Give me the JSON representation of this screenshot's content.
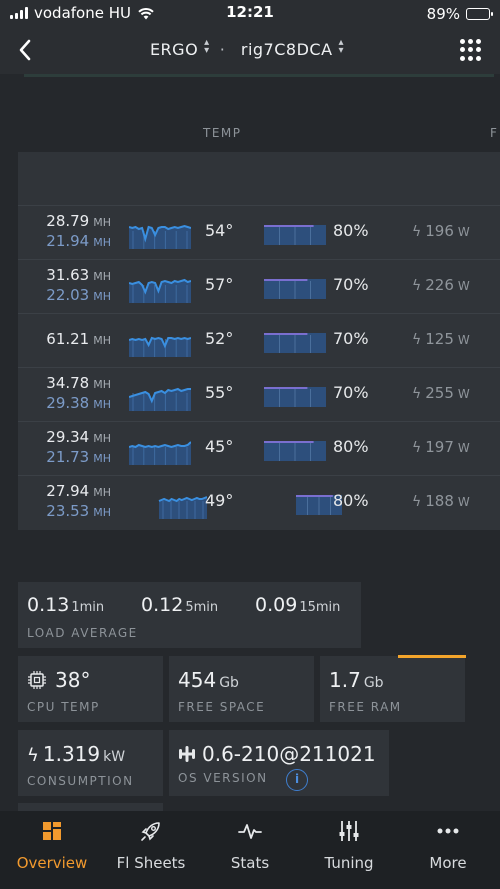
{
  "status_bar": {
    "carrier": "vodafone HU",
    "time": "12:21",
    "battery": "89%",
    "battery_level": 0.89
  },
  "nav": {
    "coin": "ERGO",
    "separator": "·",
    "rig": "rig7C8DCA"
  },
  "columns": {
    "temp": "TEMP",
    "fan_partial": "F"
  },
  "gpus": [
    {
      "hr1": "28.79",
      "hr2": "21.94",
      "temp": "54°",
      "fan": "80%",
      "fan_level": 0.8,
      "power": "196",
      "indent": false
    },
    {
      "hr1": "31.63",
      "hr2": "22.03",
      "temp": "57°",
      "fan": "70%",
      "fan_level": 0.7,
      "power": "226",
      "indent": false
    },
    {
      "hr1": "61.21",
      "hr2": "",
      "temp": "52°",
      "fan": "70%",
      "fan_level": 0.7,
      "power": "125",
      "indent": false
    },
    {
      "hr1": "34.78",
      "hr2": "29.38",
      "temp": "55°",
      "fan": "70%",
      "fan_level": 0.7,
      "power": "255",
      "indent": false
    },
    {
      "hr1": "29.34",
      "hr2": "21.73",
      "temp": "45°",
      "fan": "80%",
      "fan_level": 0.8,
      "power": "197",
      "indent": false
    },
    {
      "hr1": "27.94",
      "hr2": "23.53",
      "temp": "49°",
      "fan": "80%",
      "fan_level": 0.8,
      "power": "188",
      "indent": true
    }
  ],
  "units": {
    "hashrate": "MH",
    "power": "W"
  },
  "load_average": {
    "label": "LOAD AVERAGE",
    "v1": "0.13",
    "u1": "1min",
    "v5": "0.12",
    "u5": "5min",
    "v15": "0.09",
    "u15": "15min"
  },
  "cpu_temp": {
    "value": "38°",
    "label": "CPU TEMP"
  },
  "free_space": {
    "value": "454",
    "unit": "Gb",
    "label": "FREE SPACE"
  },
  "free_ram": {
    "value": "1.7",
    "unit": "Gb",
    "label": "FREE RAM"
  },
  "consumption": {
    "value": "1.319",
    "unit": "kW",
    "label": "CONSUMPTION"
  },
  "os_version": {
    "value": "0.6-210@211021",
    "label": "OS VERSION",
    "info": "i"
  },
  "tabs": [
    {
      "label": "Overview",
      "icon": "overview-icon",
      "active": true
    },
    {
      "label": "Fl Sheets",
      "icon": "rocket-icon",
      "active": false
    },
    {
      "label": "Stats",
      "icon": "pulse-icon",
      "active": false
    },
    {
      "label": "Tuning",
      "icon": "sliders-icon",
      "active": false
    },
    {
      "label": "More",
      "icon": "more-dots-icon",
      "active": false
    }
  ],
  "colors": {
    "accent": "#f29a2e",
    "spark": "#3a8fe0",
    "secondary_hashrate": "#7c9bc8",
    "fan_bar": "#7a6fd0",
    "info": "#3f7fd0"
  }
}
